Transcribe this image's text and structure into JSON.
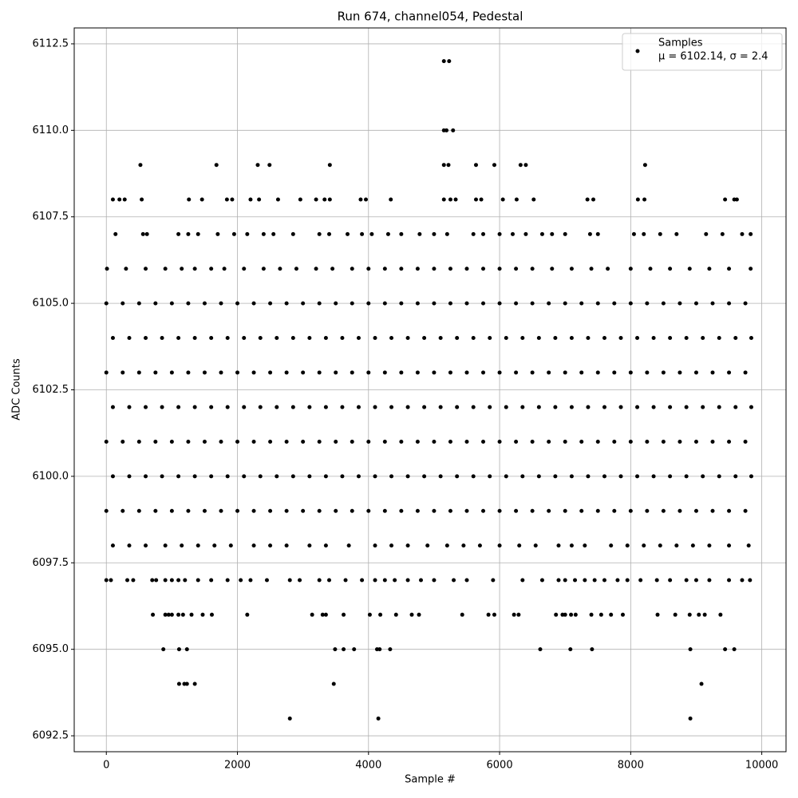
{
  "chart_data": {
    "type": "scatter",
    "title": "Run 674, channel054, Pedestal",
    "xlabel": "Sample #",
    "ylabel": "ADC Counts",
    "xlim": [
      -490,
      10370
    ],
    "ylim": [
      6092.04,
      6112.96
    ],
    "xticks": [
      0,
      2000,
      4000,
      6000,
      8000,
      10000
    ],
    "yticks": [
      6092.5,
      {
        "value": 6095,
        "label": "6095.0"
      },
      6097.5,
      {
        "value": 6100,
        "label": "6100.0"
      },
      6102.5,
      {
        "value": 6105,
        "label": "6105.0"
      },
      6107.5,
      {
        "value": 6110,
        "label": "6110.0"
      },
      6112.5
    ],
    "grid": true,
    "legend": "upper right",
    "series": [
      {
        "name": "Samples",
        "annotation": "μ = 6102.14, σ = 2.4",
        "color": "#000000",
        "x": [
          5150,
          5230,
          5150,
          5190,
          5290,
          520,
          1680,
          2310,
          2490,
          3410,
          5150,
          5220,
          5640,
          5920,
          6320,
          6400,
          8220,
          100,
          200,
          280,
          540,
          1260,
          1460,
          1840,
          1920,
          2200,
          2330,
          2620,
          2960,
          3200,
          3330,
          3410,
          3880,
          3960,
          4340,
          5150,
          5250,
          5330,
          5640,
          5720,
          6050,
          6260,
          6520,
          7340,
          7430,
          8110,
          8210,
          9440,
          9580,
          9620,
          140,
          560,
          620,
          1100,
          1250,
          1400,
          1700,
          1950,
          2150,
          2400,
          2550,
          2850,
          3250,
          3400,
          3680,
          3900,
          4050,
          4300,
          4500,
          4780,
          5000,
          5200,
          5600,
          5750,
          6000,
          6200,
          6400,
          6650,
          6800,
          7000,
          7380,
          7500,
          8050,
          8200,
          8450,
          8700,
          9150,
          9400,
          9700,
          9830,
          10,
          300,
          600,
          900,
          1150,
          1350,
          1600,
          1800,
          2100,
          2400,
          2650,
          2900,
          3200,
          3450,
          3750,
          4000,
          4250,
          4500,
          4750,
          5000,
          5250,
          5500,
          5750,
          6000,
          6250,
          6500,
          6800,
          7100,
          7400,
          7650,
          8000,
          8300,
          8600,
          8900,
          9200,
          9500,
          9830,
          0,
          250,
          500,
          750,
          1000,
          1250,
          1500,
          1750,
          2000,
          2250,
          2500,
          2750,
          3000,
          3250,
          3500,
          3750,
          4000,
          4250,
          4500,
          4750,
          5000,
          5250,
          5500,
          5750,
          6000,
          6250,
          6500,
          6750,
          7000,
          7250,
          7500,
          7750,
          8000,
          8250,
          8500,
          8750,
          9000,
          9250,
          9500,
          9750,
          100,
          350,
          600,
          850,
          1100,
          1350,
          1600,
          1850,
          2100,
          2350,
          2600,
          2850,
          3100,
          3350,
          3600,
          3850,
          4100,
          4350,
          4600,
          4850,
          5100,
          5350,
          5600,
          5850,
          6100,
          6350,
          6600,
          6850,
          7100,
          7350,
          7600,
          7850,
          8100,
          8350,
          8600,
          8850,
          9100,
          9350,
          9600,
          9840,
          0,
          250,
          500,
          750,
          1000,
          1250,
          1500,
          1750,
          2000,
          2250,
          2500,
          2750,
          3000,
          3250,
          3500,
          3750,
          4000,
          4250,
          4500,
          4750,
          5000,
          5250,
          5500,
          5750,
          6000,
          6250,
          6500,
          6750,
          7000,
          7250,
          7500,
          7750,
          8000,
          8250,
          8500,
          8750,
          9000,
          9250,
          9500,
          9750,
          100,
          350,
          600,
          850,
          1100,
          1350,
          1600,
          1850,
          2100,
          2350,
          2600,
          2850,
          3100,
          3350,
          3600,
          3850,
          4100,
          4350,
          4600,
          4850,
          5100,
          5350,
          5600,
          5850,
          6100,
          6350,
          6600,
          6850,
          7100,
          7350,
          7600,
          7850,
          8100,
          8350,
          8600,
          8850,
          9100,
          9350,
          9600,
          9840,
          0,
          250,
          500,
          750,
          1000,
          1250,
          1500,
          1750,
          2000,
          2250,
          2500,
          2750,
          3000,
          3250,
          3500,
          3750,
          4000,
          4250,
          4500,
          4750,
          5000,
          5250,
          5500,
          5750,
          6000,
          6250,
          6500,
          6750,
          7000,
          7250,
          7500,
          7750,
          8000,
          8250,
          8500,
          8750,
          9000,
          9250,
          9500,
          9750,
          100,
          350,
          600,
          850,
          1100,
          1350,
          1600,
          1850,
          2100,
          2350,
          2600,
          2850,
          3100,
          3350,
          3600,
          3850,
          4100,
          4350,
          4600,
          4850,
          5100,
          5350,
          5600,
          5850,
          6100,
          6350,
          6600,
          6850,
          7100,
          7350,
          7600,
          7850,
          8100,
          8350,
          8600,
          8850,
          9100,
          9350,
          9600,
          9840,
          0,
          250,
          500,
          750,
          1000,
          1250,
          1500,
          1750,
          2000,
          2250,
          2500,
          2750,
          3000,
          3250,
          3500,
          3750,
          4000,
          4250,
          4500,
          4750,
          5000,
          5250,
          5500,
          5750,
          6000,
          6250,
          6500,
          6750,
          7000,
          7250,
          7500,
          7750,
          8000,
          8250,
          8500,
          8750,
          9000,
          9250,
          9500,
          9750,
          100,
          350,
          600,
          900,
          1150,
          1400,
          1650,
          1900,
          2250,
          2500,
          2750,
          3100,
          3350,
          3700,
          4100,
          4350,
          4600,
          4900,
          5200,
          5450,
          5700,
          6000,
          6300,
          6550,
          6900,
          7100,
          7300,
          7700,
          7950,
          8200,
          8450,
          8700,
          8950,
          9200,
          9500,
          9800,
          0,
          70,
          320,
          410,
          700,
          760,
          900,
          1000,
          1100,
          1200,
          1400,
          1600,
          1850,
          2050,
          2200,
          2450,
          2800,
          2950,
          3250,
          3400,
          3650,
          3900,
          4100,
          4250,
          4400,
          4600,
          4800,
          5000,
          5300,
          5500,
          5900,
          6350,
          6650,
          6900,
          7000,
          7150,
          7300,
          7450,
          7600,
          7800,
          7950,
          8150,
          8400,
          8600,
          8850,
          9000,
          9200,
          9500,
          9700,
          9820,
          710,
          900,
          950,
          1000,
          1100,
          1170,
          1300,
          1470,
          1610,
          2150,
          3140,
          3300,
          3350,
          3620,
          4020,
          4180,
          4420,
          4660,
          4770,
          5430,
          5830,
          5920,
          6220,
          6290,
          6860,
          6960,
          7000,
          7090,
          7160,
          7400,
          7550,
          7700,
          7880,
          8410,
          8680,
          8900,
          9040,
          9130,
          9370,
          870,
          1110,
          1230,
          3490,
          3620,
          3780,
          4130,
          4170,
          4330,
          6620,
          7080,
          7410,
          8910,
          9440,
          9580,
          1110,
          1190,
          1230,
          1350,
          3470,
          9080,
          2800,
          4150,
          8910
        ],
        "values": [
          6112,
          6112,
          6110,
          6110,
          6110,
          6109,
          6109,
          6109,
          6109,
          6109,
          6109,
          6109,
          6109,
          6109,
          6109,
          6109,
          6109,
          6108,
          6108,
          6108,
          6108,
          6108,
          6108,
          6108,
          6108,
          6108,
          6108,
          6108,
          6108,
          6108,
          6108,
          6108,
          6108,
          6108,
          6108,
          6108,
          6108,
          6108,
          6108,
          6108,
          6108,
          6108,
          6108,
          6108,
          6108,
          6108,
          6108,
          6108,
          6108,
          6108,
          6107,
          6107,
          6107,
          6107,
          6107,
          6107,
          6107,
          6107,
          6107,
          6107,
          6107,
          6107,
          6107,
          6107,
          6107,
          6107,
          6107,
          6107,
          6107,
          6107,
          6107,
          6107,
          6107,
          6107,
          6107,
          6107,
          6107,
          6107,
          6107,
          6107,
          6107,
          6107,
          6107,
          6107,
          6107,
          6107,
          6107,
          6107,
          6107,
          6107,
          6106,
          6106,
          6106,
          6106,
          6106,
          6106,
          6106,
          6106,
          6106,
          6106,
          6106,
          6106,
          6106,
          6106,
          6106,
          6106,
          6106,
          6106,
          6106,
          6106,
          6106,
          6106,
          6106,
          6106,
          6106,
          6106,
          6106,
          6106,
          6106,
          6106,
          6106,
          6106,
          6106,
          6106,
          6106,
          6106,
          6106,
          6105,
          6105,
          6105,
          6105,
          6105,
          6105,
          6105,
          6105,
          6105,
          6105,
          6105,
          6105,
          6105,
          6105,
          6105,
          6105,
          6105,
          6105,
          6105,
          6105,
          6105,
          6105,
          6105,
          6105,
          6105,
          6105,
          6105,
          6105,
          6105,
          6105,
          6105,
          6105,
          6105,
          6105,
          6105,
          6105,
          6105,
          6105,
          6105,
          6105,
          6104,
          6104,
          6104,
          6104,
          6104,
          6104,
          6104,
          6104,
          6104,
          6104,
          6104,
          6104,
          6104,
          6104,
          6104,
          6104,
          6104,
          6104,
          6104,
          6104,
          6104,
          6104,
          6104,
          6104,
          6104,
          6104,
          6104,
          6104,
          6104,
          6104,
          6104,
          6104,
          6104,
          6104,
          6104,
          6104,
          6104,
          6104,
          6104,
          6104,
          6103,
          6103,
          6103,
          6103,
          6103,
          6103,
          6103,
          6103,
          6103,
          6103,
          6103,
          6103,
          6103,
          6103,
          6103,
          6103,
          6103,
          6103,
          6103,
          6103,
          6103,
          6103,
          6103,
          6103,
          6103,
          6103,
          6103,
          6103,
          6103,
          6103,
          6103,
          6103,
          6103,
          6103,
          6103,
          6103,
          6103,
          6103,
          6103,
          6103,
          6102,
          6102,
          6102,
          6102,
          6102,
          6102,
          6102,
          6102,
          6102,
          6102,
          6102,
          6102,
          6102,
          6102,
          6102,
          6102,
          6102,
          6102,
          6102,
          6102,
          6102,
          6102,
          6102,
          6102,
          6102,
          6102,
          6102,
          6102,
          6102,
          6102,
          6102,
          6102,
          6102,
          6102,
          6102,
          6102,
          6102,
          6102,
          6102,
          6102,
          6101,
          6101,
          6101,
          6101,
          6101,
          6101,
          6101,
          6101,
          6101,
          6101,
          6101,
          6101,
          6101,
          6101,
          6101,
          6101,
          6101,
          6101,
          6101,
          6101,
          6101,
          6101,
          6101,
          6101,
          6101,
          6101,
          6101,
          6101,
          6101,
          6101,
          6101,
          6101,
          6101,
          6101,
          6101,
          6101,
          6101,
          6101,
          6101,
          6101,
          6100,
          6100,
          6100,
          6100,
          6100,
          6100,
          6100,
          6100,
          6100,
          6100,
          6100,
          6100,
          6100,
          6100,
          6100,
          6100,
          6100,
          6100,
          6100,
          6100,
          6100,
          6100,
          6100,
          6100,
          6100,
          6100,
          6100,
          6100,
          6100,
          6100,
          6100,
          6100,
          6100,
          6100,
          6100,
          6100,
          6100,
          6100,
          6100,
          6100,
          6099,
          6099,
          6099,
          6099,
          6099,
          6099,
          6099,
          6099,
          6099,
          6099,
          6099,
          6099,
          6099,
          6099,
          6099,
          6099,
          6099,
          6099,
          6099,
          6099,
          6099,
          6099,
          6099,
          6099,
          6099,
          6099,
          6099,
          6099,
          6099,
          6099,
          6099,
          6099,
          6099,
          6099,
          6099,
          6099,
          6099,
          6099,
          6099,
          6099,
          6098,
          6098,
          6098,
          6098,
          6098,
          6098,
          6098,
          6098,
          6098,
          6098,
          6098,
          6098,
          6098,
          6098,
          6098,
          6098,
          6098,
          6098,
          6098,
          6098,
          6098,
          6098,
          6098,
          6098,
          6098,
          6098,
          6098,
          6098,
          6098,
          6098,
          6098,
          6098,
          6098,
          6098,
          6098,
          6098,
          6097,
          6097,
          6097,
          6097,
          6097,
          6097,
          6097,
          6097,
          6097,
          6097,
          6097,
          6097,
          6097,
          6097,
          6097,
          6097,
          6097,
          6097,
          6097,
          6097,
          6097,
          6097,
          6097,
          6097,
          6097,
          6097,
          6097,
          6097,
          6097,
          6097,
          6097,
          6097,
          6097,
          6097,
          6097,
          6097,
          6097,
          6097,
          6097,
          6097,
          6097,
          6097,
          6097,
          6097,
          6097,
          6097,
          6097,
          6097,
          6097,
          6097,
          6096,
          6096,
          6096,
          6096,
          6096,
          6096,
          6096,
          6096,
          6096,
          6096,
          6096,
          6096,
          6096,
          6096,
          6096,
          6096,
          6096,
          6096,
          6096,
          6096,
          6096,
          6096,
          6096,
          6096,
          6096,
          6096,
          6096,
          6096,
          6096,
          6096,
          6096,
          6096,
          6096,
          6096,
          6096,
          6096,
          6096,
          6096,
          6096,
          6095,
          6095,
          6095,
          6095,
          6095,
          6095,
          6095,
          6095,
          6095,
          6095,
          6095,
          6095,
          6095,
          6095,
          6095,
          6094,
          6094,
          6094,
          6094,
          6094,
          6094,
          6093,
          6093,
          6093
        ]
      }
    ]
  }
}
